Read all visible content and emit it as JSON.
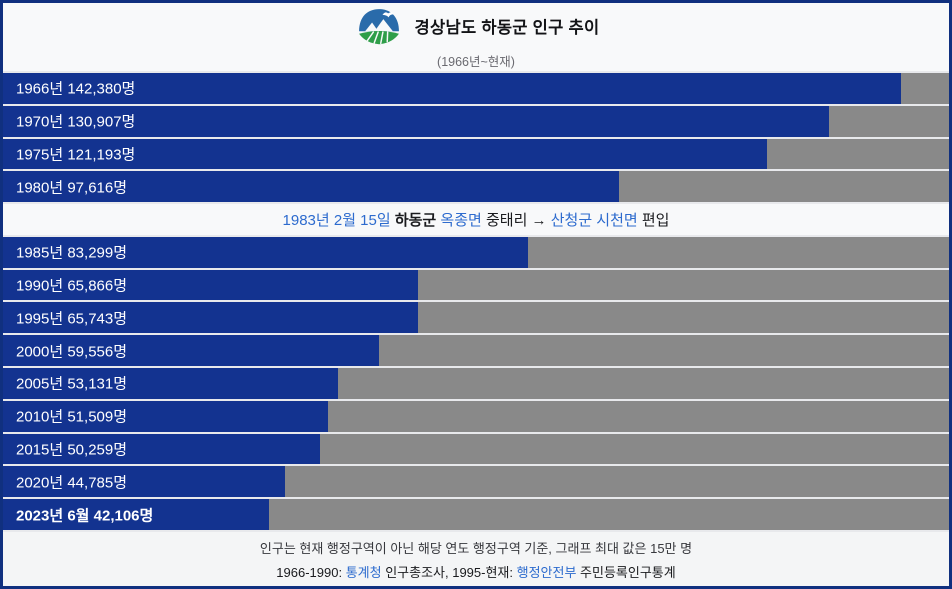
{
  "header": {
    "title": "경상남도 하동군 인구 추이",
    "subtitle": "(1966년~현재)",
    "logo_icon": "hadong-county-emblem"
  },
  "colors": {
    "bar": "#133390",
    "track": "#898989",
    "page_border": "#10307f",
    "link": "#2d6bce",
    "emblem_blue": "#2a6baa",
    "emblem_green": "#2f9e49"
  },
  "chart_data": {
    "type": "bar",
    "orientation": "horizontal",
    "title": "경상남도 하동군 인구 추이",
    "subtitle": "(1966년~현재)",
    "unit": "명",
    "max_value": 150000,
    "grid": false,
    "legend": false,
    "bar_color": "#133390",
    "track_color": "#898989",
    "categories": [
      "1966년",
      "1970년",
      "1975년",
      "1980년",
      "1985년",
      "1990년",
      "1995년",
      "2000년",
      "2005년",
      "2010년",
      "2015년",
      "2020년",
      "2023년 6월"
    ],
    "values": [
      142380,
      130907,
      121193,
      97616,
      83299,
      65866,
      65743,
      59556,
      53131,
      51509,
      50259,
      44785,
      42106
    ],
    "rows": [
      {
        "kind": "bar",
        "year": "1966년",
        "value": 142380,
        "label": "1966년 142,380명"
      },
      {
        "kind": "bar",
        "year": "1970년",
        "value": 130907,
        "label": "1970년 130,907명"
      },
      {
        "kind": "bar",
        "year": "1975년",
        "value": 121193,
        "label": "1975년 121,193명"
      },
      {
        "kind": "bar",
        "year": "1980년",
        "value": 97616,
        "label": "1980년 97,616명"
      },
      {
        "kind": "note",
        "name": "annotation-1983",
        "segments": [
          {
            "text": "1983년 2월 15일",
            "style": "link"
          },
          {
            "text": " ",
            "style": "plain"
          },
          {
            "text": "하동군",
            "style": "bold"
          },
          {
            "text": " ",
            "style": "plain"
          },
          {
            "text": "옥종면",
            "style": "link"
          },
          {
            "text": " 중태리 → ",
            "style": "plain"
          },
          {
            "text": "산청군 시천면",
            "style": "link"
          },
          {
            "text": " 편입",
            "style": "plain"
          }
        ]
      },
      {
        "kind": "bar",
        "year": "1985년",
        "value": 83299,
        "label": "1985년 83,299명"
      },
      {
        "kind": "bar",
        "year": "1990년",
        "value": 65866,
        "label": "1990년 65,866명"
      },
      {
        "kind": "bar",
        "year": "1995년",
        "value": 65743,
        "label": "1995년 65,743명"
      },
      {
        "kind": "bar",
        "year": "2000년",
        "value": 59556,
        "label": "2000년 59,556명"
      },
      {
        "kind": "bar",
        "year": "2005년",
        "value": 53131,
        "label": "2005년 53,131명"
      },
      {
        "kind": "bar",
        "year": "2010년",
        "value": 51509,
        "label": "2010년 51,509명"
      },
      {
        "kind": "bar",
        "year": "2015년",
        "value": 50259,
        "label": "2015년 50,259명"
      },
      {
        "kind": "bar",
        "year": "2020년",
        "value": 44785,
        "label": "2020년 44,785명"
      },
      {
        "kind": "bar",
        "year": "2023년 6월",
        "value": 42106,
        "label": "2023년 6월 42,106명",
        "bold": true
      }
    ]
  },
  "footer": {
    "line1": "인구는 현재 행정구역이 아닌 해당 연도 행정구역 기준, 그래프 최대 값은 15만 명",
    "line2_segments": [
      {
        "text": "1966-1990: ",
        "style": "plain"
      },
      {
        "text": "통계청",
        "style": "link"
      },
      {
        "text": " 인구총조사, 1995-현재: ",
        "style": "plain"
      },
      {
        "text": "행정안전부",
        "style": "link"
      },
      {
        "text": " 주민등록인구통계",
        "style": "plain"
      }
    ]
  }
}
